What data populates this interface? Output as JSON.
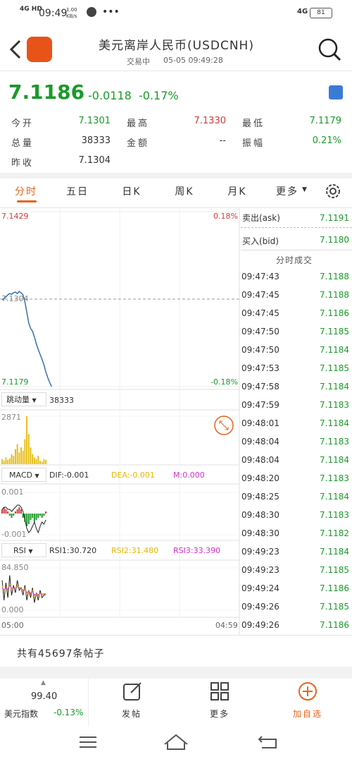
{
  "status_bar": {
    "network": "4G HD",
    "time": "09:49",
    "speed": "1.00 KB/s",
    "signal": "4G",
    "battery": "81"
  },
  "header": {
    "title": "美元离岸人民币(USDCNH)",
    "status": "交易中",
    "datetime": "05-05 09:49:28"
  },
  "quote": {
    "price": "7.1186",
    "change": "-0.0118",
    "change_pct": "-0.17%"
  },
  "stats": [
    {
      "label": "今开",
      "value": "7.1301"
    },
    {
      "label": "最高",
      "value": "7.1330"
    },
    {
      "label": "最低",
      "value": "7.1179"
    },
    {
      "label": "总量",
      "value": "38333"
    },
    {
      "label": "金额",
      "value": "--"
    },
    {
      "label": "振幅",
      "value": "0.21%"
    },
    {
      "label": "昨收",
      "value": "7.1304"
    }
  ],
  "tabs": [
    "分时",
    "五日",
    "日K",
    "周K",
    "月K",
    "更多"
  ],
  "price_chart": {
    "ylim": [
      7.1179,
      7.1429
    ],
    "yticks": [
      7.1179,
      7.1429
    ],
    "pct_labels": [
      "-0.18%",
      "0.18%"
    ],
    "ref": 7.1304,
    "color": "#3a6fb0",
    "values": [
      7.1303,
      7.1305,
      7.1307,
      7.131,
      7.1312,
      7.1311,
      7.1313,
      7.1314,
      7.1312,
      7.1315,
      7.1313,
      7.131,
      7.13,
      7.1285,
      7.127,
      7.1262,
      7.1258,
      7.125,
      7.124,
      7.1232,
      7.1225,
      7.1218,
      7.121,
      7.12,
      7.1192,
      7.1185,
      7.1179
    ]
  },
  "volume_chart": {
    "selector": "跳动量",
    "total": "38333",
    "ylim": [
      0,
      2871
    ],
    "yticks": [
      2871
    ],
    "color": "#e6b800",
    "values": [
      300,
      200,
      400,
      250,
      350,
      600,
      500,
      900,
      1200,
      700,
      1000,
      800,
      1500,
      2871,
      1800,
      1000,
      600,
      400,
      300,
      500,
      200,
      150,
      300,
      250
    ]
  },
  "macd_chart": {
    "selector": "MACD",
    "dif": "DIF:-0.001",
    "dea": "DEA:-0.001",
    "m": "M:0.000",
    "ylim": [
      -0.001,
      0.001
    ],
    "yticks": [
      -0.001,
      0.001
    ],
    "hist": [
      0.0002,
      0.0003,
      0.0002,
      0.0001,
      -0.0001,
      -0.0002,
      -0.0001,
      0.0001,
      0.0002,
      0.0003,
      0.0002,
      -0.0002,
      -0.0004,
      -0.0006,
      -0.0005,
      -0.0003,
      -0.0002,
      -0.0004,
      -0.0003,
      -0.0002,
      -0.0001,
      -0.0002,
      -0.0001,
      0.0001
    ],
    "dif_values": [
      0.0002,
      0.0003,
      0.0003,
      0.0002,
      0.0002,
      0.0001,
      0.0002,
      0.0003,
      0.0004,
      0.0004,
      0.0003,
      0.0001,
      -0.0003,
      -0.0007,
      -0.0009,
      -0.0008,
      -0.0006,
      -0.0004,
      -0.0007,
      -0.0009,
      -0.0006,
      -0.0004,
      -0.0005,
      -0.0003
    ]
  },
  "rsi_chart": {
    "selector": "RSI",
    "rsi1": "RSI1:30.720",
    "rsi2": "RSI2:31.480",
    "rsi3": "RSI3:33.390",
    "ylim": [
      0,
      84.85
    ],
    "yticks": [
      {
        "value": 0,
        "label": "0.000"
      },
      {
        "value": 84.85,
        "label": "84.850"
      }
    ],
    "series": [
      {
        "color": "#222222",
        "values": [
          60,
          20,
          55,
          25,
          70,
          30,
          50,
          35,
          60,
          40,
          45,
          30,
          50,
          20,
          40,
          25,
          45,
          15,
          35,
          20,
          40,
          25,
          30,
          31
        ]
      },
      {
        "color": "#e6b800",
        "values": [
          50,
          35,
          45,
          40,
          55,
          40,
          45,
          42,
          50,
          45,
          42,
          38,
          44,
          30,
          38,
          32,
          40,
          25,
          33,
          28,
          35,
          30,
          32,
          31
        ]
      },
      {
        "color": "#cc33cc",
        "values": [
          45,
          40,
          44,
          42,
          50,
          44,
          44,
          44,
          47,
          45,
          43,
          40,
          42,
          35,
          38,
          34,
          38,
          30,
          33,
          31,
          34,
          32,
          33,
          33
        ]
      }
    ]
  },
  "time_axis": {
    "start": "05:00",
    "end": "04:59"
  },
  "order_book": {
    "ask_label": "卖出(ask)",
    "ask": "7.1191",
    "bid_label": "买入(bid)",
    "bid": "7.1180",
    "trades_title": "分时成交",
    "trades": [
      [
        "09:47:43",
        "7.1188"
      ],
      [
        "09:47:45",
        "7.1188"
      ],
      [
        "09:47:45",
        "7.1186"
      ],
      [
        "09:47:50",
        "7.1185"
      ],
      [
        "09:47:50",
        "7.1184"
      ],
      [
        "09:47:53",
        "7.1185"
      ],
      [
        "09:47:58",
        "7.1184"
      ],
      [
        "09:47:59",
        "7.1183"
      ],
      [
        "09:48:01",
        "7.1184"
      ],
      [
        "09:48:04",
        "7.1183"
      ],
      [
        "09:48:04",
        "7.1184"
      ],
      [
        "09:48:20",
        "7.1183"
      ],
      [
        "09:48:25",
        "7.1184"
      ],
      [
        "09:48:30",
        "7.1183"
      ],
      [
        "09:48:30",
        "7.1182"
      ],
      [
        "09:49:23",
        "7.1184"
      ],
      [
        "09:49:23",
        "7.1185"
      ],
      [
        "09:49:24",
        "7.1186"
      ],
      [
        "09:49:26",
        "7.1185"
      ],
      [
        "09:49:26",
        "7.1186"
      ]
    ]
  },
  "posts": "共有45697条帖子",
  "bottom_bar": {
    "index_value": "99.40",
    "index_name": "美元指数",
    "index_change": "-0.13%",
    "items": [
      "发帖",
      "更多",
      "加自选"
    ]
  }
}
